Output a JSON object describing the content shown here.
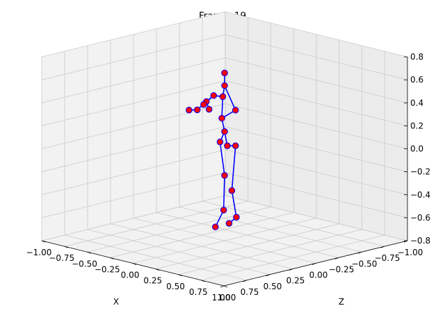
{
  "chart_data": {
    "type": "scatter",
    "projection": "3d",
    "title": "Frame: 19",
    "xlabel": "X",
    "ylabel": "Z",
    "zlabel": "",
    "xlim": [
      -1.0,
      1.0
    ],
    "ylim": [
      -1.0,
      1.0
    ],
    "zlim": [
      -0.8,
      0.8
    ],
    "x_ticks": [
      "−1.00",
      "−0.75",
      "−0.50",
      "−0.25",
      "0.00",
      "0.25",
      "0.50",
      "0.75",
      "1.00"
    ],
    "y_ticks": [
      "−1.00",
      "−0.75",
      "−0.50",
      "−0.25",
      "0.00",
      "0.25",
      "0.50",
      "0.75",
      "1.00"
    ],
    "z_ticks": [
      "−0.8",
      "−0.6",
      "−0.4",
      "−0.2",
      "0.0",
      "0.2",
      "0.4",
      "0.6",
      "0.8"
    ],
    "grid": true,
    "colors": {
      "bone": "#0000ff",
      "joint_face": "#ff0000",
      "joint_edge": "#0000ff"
    },
    "joints": [
      {
        "x": 0.0,
        "y": 0.0,
        "z": 0.15
      },
      {
        "x": -0.05,
        "y": 0.0,
        "z": 0.05
      },
      {
        "x": 0.05,
        "y": 0.02,
        "z": 0.04
      },
      {
        "x": 0.03,
        "y": 0.03,
        "z": -0.22
      },
      {
        "x": 0.03,
        "y": 0.04,
        "z": -0.52
      },
      {
        "x": 0.18,
        "y": 0.05,
        "z": -0.55
      },
      {
        "x": 0.15,
        "y": 0.1,
        "z": -0.6
      },
      {
        "x": 0.1,
        "y": 0.02,
        "z": -0.34
      },
      {
        "x": 0.0,
        "y": 0.1,
        "z": -0.66
      },
      {
        "x": 0.02,
        "y": 0.05,
        "z": 0.28
      },
      {
        "x": -0.02,
        "y": 0.0,
        "z": 0.45
      },
      {
        "x": 0.0,
        "y": 0.0,
        "z": 0.55
      },
      {
        "x": 0.0,
        "y": 0.0,
        "z": 0.66
      },
      {
        "x": -0.12,
        "y": 0.0,
        "z": 0.44
      },
      {
        "x": -0.18,
        "y": 0.02,
        "z": 0.38
      },
      {
        "x": -0.23,
        "y": 0.0,
        "z": 0.34
      },
      {
        "x": -0.12,
        "y": 0.05,
        "z": 0.33
      },
      {
        "x": -0.25,
        "y": 0.05,
        "z": 0.3
      },
      {
        "x": -0.34,
        "y": 0.05,
        "z": 0.28
      },
      {
        "x": 0.12,
        "y": 0.0,
        "z": 0.36
      },
      {
        "x": 0.12,
        "y": 0.0,
        "z": 0.05
      }
    ],
    "bones": [
      [
        0,
        1
      ],
      [
        0,
        2
      ],
      [
        1,
        3
      ],
      [
        3,
        4
      ],
      [
        4,
        8
      ],
      [
        2,
        20
      ],
      [
        20,
        7
      ],
      [
        7,
        5
      ],
      [
        5,
        6
      ],
      [
        0,
        9
      ],
      [
        9,
        10
      ],
      [
        10,
        11
      ],
      [
        11,
        12
      ],
      [
        11,
        19
      ],
      [
        19,
        9
      ],
      [
        10,
        13
      ],
      [
        13,
        14
      ],
      [
        14,
        15
      ],
      [
        14,
        16
      ],
      [
        13,
        17
      ],
      [
        17,
        18
      ]
    ]
  }
}
